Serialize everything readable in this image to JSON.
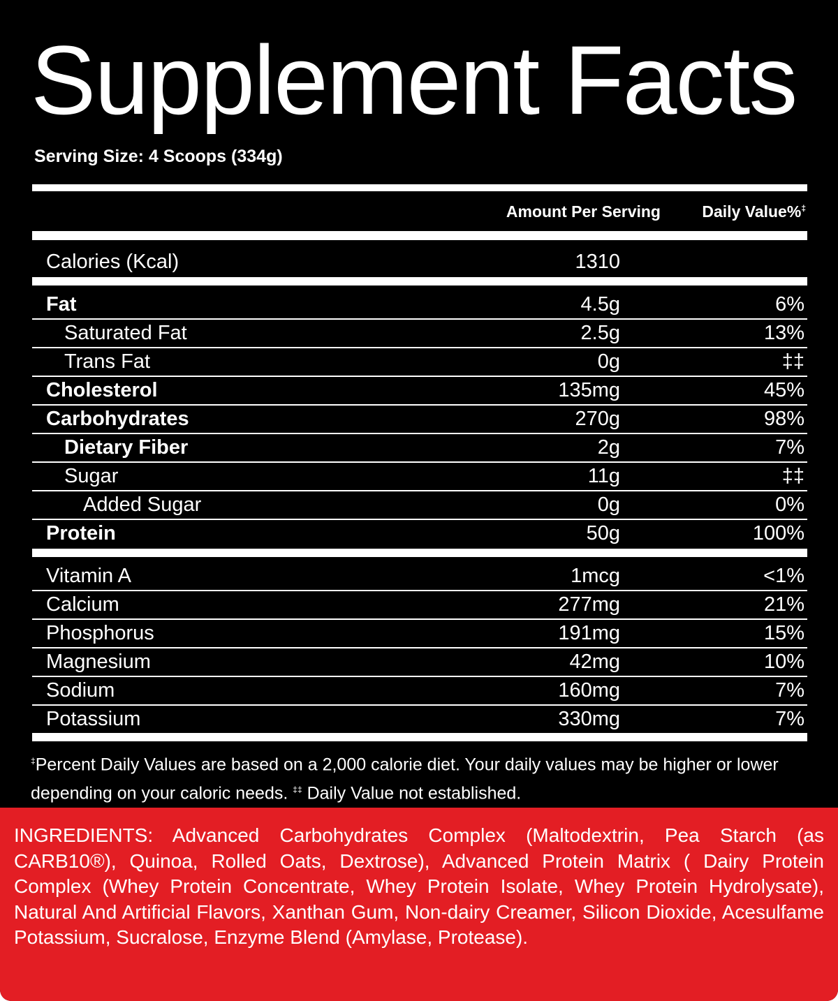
{
  "title": "Supplement Facts",
  "serving_size": "Serving Size: 4 Scoops (334g)",
  "headers": {
    "amount": "Amount Per Serving",
    "daily_value": "Daily Value%",
    "daily_value_mark": "‡"
  },
  "calories": {
    "name": "Calories (Kcal)",
    "amount": "1310"
  },
  "nutrients": [
    {
      "name": "Fat",
      "amount": "4.5g",
      "dv": "6%"
    },
    {
      "name": "Saturated Fat",
      "amount": "2.5g",
      "dv": "13%"
    },
    {
      "name": "Trans Fat",
      "amount": "0g",
      "dv": "‡‡"
    },
    {
      "name": "Cholesterol",
      "amount": "135mg",
      "dv": "45%"
    },
    {
      "name": "Carbohydrates",
      "amount": "270g",
      "dv": "98%"
    },
    {
      "name": "Dietary Fiber",
      "amount": "2g",
      "dv": "7%"
    },
    {
      "name": "Sugar",
      "amount": "11g",
      "dv": "‡‡"
    },
    {
      "name": "Added Sugar",
      "amount": "0g",
      "dv": "0%"
    },
    {
      "name": "Protein",
      "amount": "50g",
      "dv": "100%"
    }
  ],
  "minerals": [
    {
      "name": "Vitamin A",
      "amount": "1mcg",
      "dv": "<1%"
    },
    {
      "name": "Calcium",
      "amount": "277mg",
      "dv": "21%"
    },
    {
      "name": "Phosphorus",
      "amount": "191mg",
      "dv": "15%"
    },
    {
      "name": "Magnesium",
      "amount": "42mg",
      "dv": "10%"
    },
    {
      "name": "Sodium",
      "amount": "160mg",
      "dv": "7%"
    },
    {
      "name": "Potassium",
      "amount": "330mg",
      "dv": "7%"
    }
  ],
  "footnote": {
    "mark1": "‡",
    "text1": "Percent Daily Values are based on a 2,000 calorie diet. Your daily values may be higher or lower depending on your caloric needs.",
    "mark2": "‡‡",
    "text2": "Daily Value not established."
  },
  "ingredients": "INGREDIENTS: Advanced Carbohydrates Complex (Maltodextrin, Pea Starch (as CARB10®), Quinoa, Rolled Oats, Dextrose), Advanced Protein Matrix ( Dairy Protein Complex (Whey Protein Concentrate, Whey Protein Isolate, Whey Protein Hydrolysate), Natural And Artificial Flavors, Xanthan Gum, Non-dairy Creamer, Silicon Dioxide, Acesulfame Potassium, Sucralose, Enzyme Blend (Amylase, Protease).",
  "colors": {
    "panel": "#000000",
    "ingredients_bg": "#e31e24",
    "text": "#ffffff"
  }
}
